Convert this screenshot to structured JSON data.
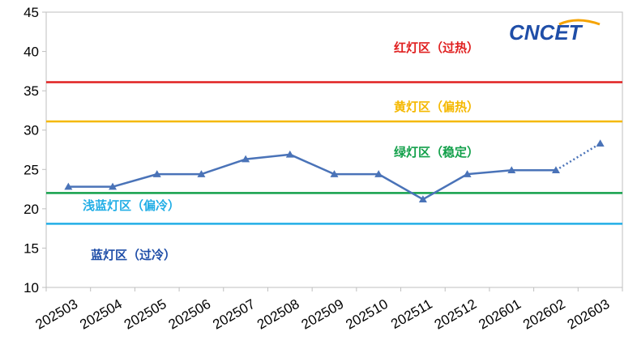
{
  "chart_data": {
    "type": "line",
    "x": [
      "202503",
      "202504",
      "202505",
      "202506",
      "202507",
      "202508",
      "202509",
      "202510",
      "202511",
      "202512",
      "202601",
      "202602",
      "202603"
    ],
    "series": [
      {
        "values": [
          22.8,
          22.8,
          24.4,
          24.4,
          26.3,
          26.9,
          24.4,
          24.4,
          21.2,
          24.4,
          24.9,
          24.9,
          28.3
        ],
        "color": "#4a73b8",
        "last_segment_style": "dotted"
      }
    ],
    "ylim": [
      10,
      45
    ],
    "yticks": [
      "10",
      "15",
      "20",
      "25",
      "30",
      "35",
      "40",
      "45"
    ],
    "grid": false,
    "zones": [
      {
        "label": "红灯区（过热）",
        "threshold": 36.1,
        "color": "#e02020"
      },
      {
        "label": "黄灯区（偏热）",
        "threshold": 31.1,
        "color": "#f5b800"
      },
      {
        "label": "绿灯区（稳定）",
        "threshold": 22.0,
        "color": "#12a04a"
      },
      {
        "label": "浅蓝灯区（偏冷）",
        "threshold": 18.1,
        "color": "#22aee6"
      },
      {
        "label": "蓝灯区（过冷）",
        "color": "#1f4ea8"
      }
    ]
  },
  "logo": {
    "text": "CNCET",
    "color": "#1f4ea8",
    "accent": "#f5a300"
  }
}
